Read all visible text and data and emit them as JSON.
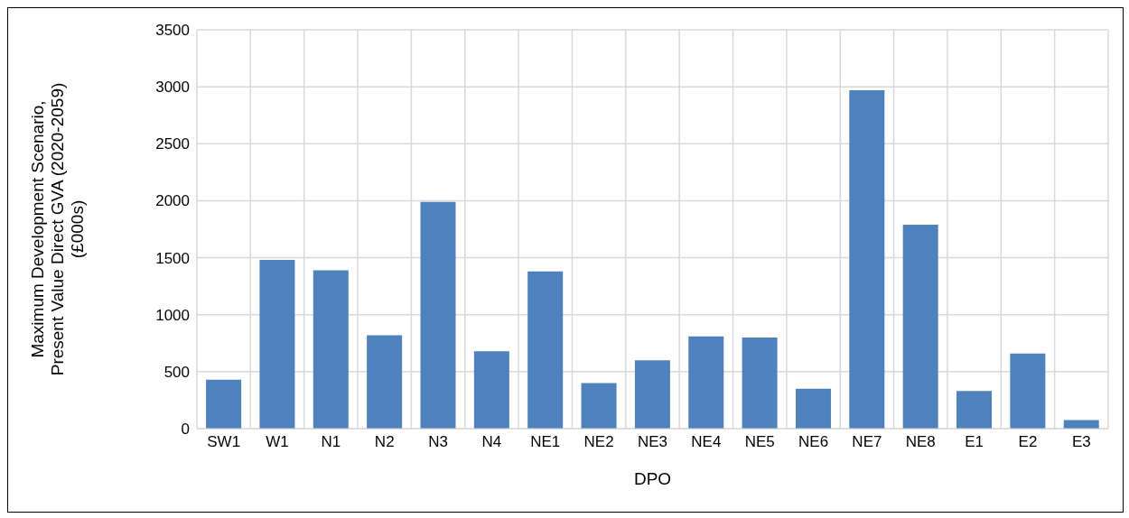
{
  "chart_data": {
    "type": "bar",
    "xlabel": "DPO",
    "ylabel": "Maximum Development Scenario,\nPresent Value Direct GVA  (2020-2059)\n(£000s)",
    "categories": [
      "SW1",
      "W1",
      "N1",
      "N2",
      "N3",
      "N4",
      "NE1",
      "NE2",
      "NE3",
      "NE4",
      "NE5",
      "NE6",
      "NE7",
      "NE8",
      "E1",
      "E2",
      "E3"
    ],
    "values": [
      430,
      1480,
      1390,
      820,
      1990,
      680,
      1380,
      400,
      600,
      810,
      800,
      350,
      2970,
      1790,
      330,
      660,
      75
    ],
    "color": "#4f81bd",
    "ylim": [
      0,
      3500
    ],
    "yticks": [
      0,
      500,
      1000,
      1500,
      2000,
      2500,
      3000,
      3500
    ],
    "grid": true
  }
}
